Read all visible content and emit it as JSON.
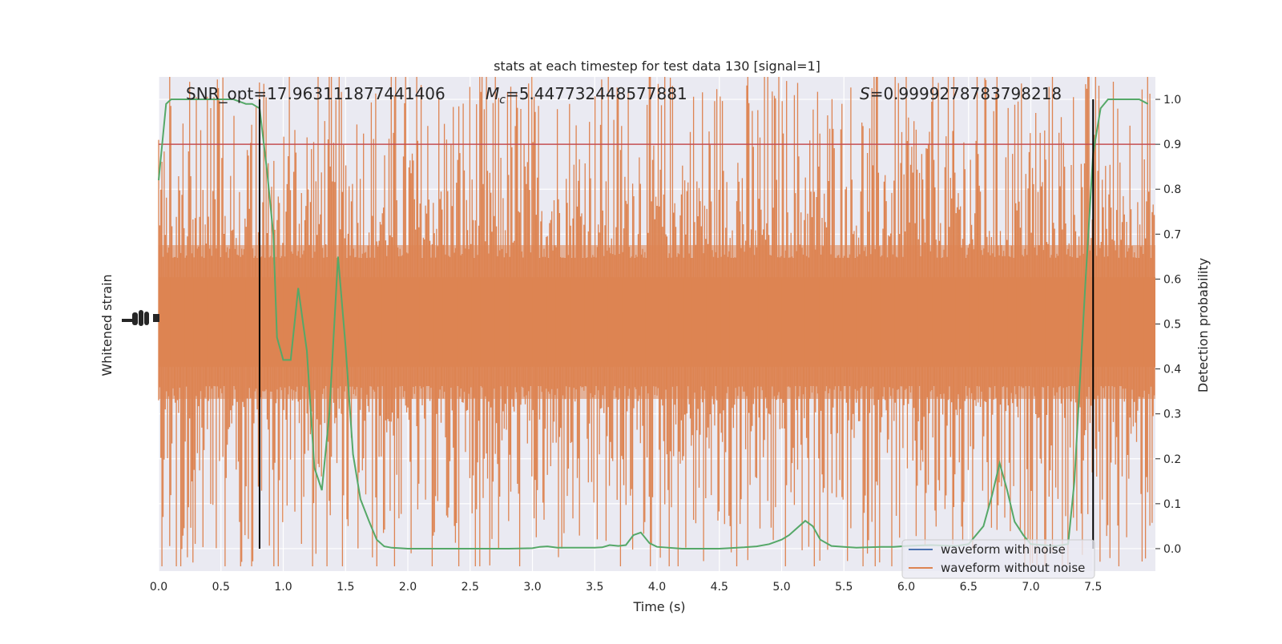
{
  "chart_data": {
    "type": "line",
    "title": "stats at each timestep for test data 130 [signal=1]",
    "xlabel": "Time (s)",
    "ylabel_left": "Whitened strain",
    "ylabel_right": "Detection probability",
    "xlim": [
      0.0,
      8.0
    ],
    "ylim_right": [
      -0.05,
      1.05
    ],
    "x_ticks": [
      "0.0",
      "0.5",
      "1.0",
      "1.5",
      "2.0",
      "2.5",
      "3.0",
      "3.5",
      "4.0",
      "4.5",
      "5.0",
      "5.5",
      "6.0",
      "6.5",
      "7.0",
      "7.5"
    ],
    "y_ticks_right": [
      "0.0",
      "0.1",
      "0.2",
      "0.3",
      "0.4",
      "0.5",
      "0.6",
      "0.7",
      "0.8",
      "0.9",
      "1.0"
    ],
    "annotations": {
      "snr": "SNR_opt=17.963111877441406",
      "mc_symbol": "M",
      "mc_sub": "c",
      "mc_value": "=5.447732448577881",
      "s_symbol": "S",
      "s_value": "=0.9999278783798218"
    },
    "threshold": 0.9,
    "vertical_lines": [
      0.81,
      7.5
    ],
    "legend": {
      "position": "lower right",
      "items": [
        {
          "label": "waveform with noise",
          "color": "#4c72b0"
        },
        {
          "label": "waveform without noise",
          "color": "#dd8452"
        }
      ]
    },
    "series": [
      {
        "name": "detection probability",
        "color": "#55a868",
        "x": [
          0.0,
          0.06,
          0.1,
          0.2,
          0.3,
          0.4,
          0.5,
          0.6,
          0.7,
          0.75,
          0.81,
          0.87,
          0.92,
          0.95,
          1.0,
          1.06,
          1.12,
          1.19,
          1.25,
          1.31,
          1.37,
          1.44,
          1.5,
          1.56,
          1.62,
          1.69,
          1.75,
          1.81,
          1.87,
          1.94,
          2.0,
          2.2,
          2.5,
          2.8,
          3.0,
          3.06,
          3.12,
          3.2,
          3.3,
          3.4,
          3.5,
          3.56,
          3.62,
          3.69,
          3.75,
          3.81,
          3.87,
          3.94,
          4.0,
          4.2,
          4.5,
          4.7,
          4.8,
          4.9,
          5.0,
          5.06,
          5.12,
          5.19,
          5.25,
          5.31,
          5.4,
          5.5,
          5.6,
          5.7,
          5.8,
          5.9,
          6.0,
          6.2,
          6.4,
          6.5,
          6.62,
          6.69,
          6.75,
          6.81,
          6.87,
          6.94,
          7.0,
          7.1,
          7.2,
          7.3,
          7.35,
          7.44,
          7.5,
          7.56,
          7.62,
          7.69,
          7.75,
          7.81,
          7.87,
          7.94
        ],
        "values": [
          0.82,
          0.99,
          1.0,
          1.0,
          1.0,
          1.0,
          1.0,
          1.0,
          0.99,
          0.99,
          0.98,
          0.84,
          0.7,
          0.47,
          0.42,
          0.42,
          0.58,
          0.44,
          0.18,
          0.13,
          0.3,
          0.65,
          0.45,
          0.21,
          0.11,
          0.06,
          0.02,
          0.005,
          0.002,
          0.001,
          0.0,
          0.0,
          0.0,
          0.0,
          0.001,
          0.004,
          0.005,
          0.002,
          0.002,
          0.002,
          0.002,
          0.003,
          0.008,
          0.006,
          0.008,
          0.03,
          0.036,
          0.012,
          0.004,
          0.0,
          0.0,
          0.003,
          0.005,
          0.01,
          0.02,
          0.03,
          0.045,
          0.062,
          0.05,
          0.02,
          0.006,
          0.004,
          0.002,
          0.003,
          0.004,
          0.004,
          0.006,
          0.008,
          0.006,
          0.01,
          0.05,
          0.12,
          0.19,
          0.13,
          0.06,
          0.03,
          0.01,
          0.008,
          0.006,
          0.01,
          0.15,
          0.6,
          0.88,
          0.98,
          1.0,
          1.0,
          1.0,
          1.0,
          1.0,
          0.99
        ]
      }
    ]
  }
}
